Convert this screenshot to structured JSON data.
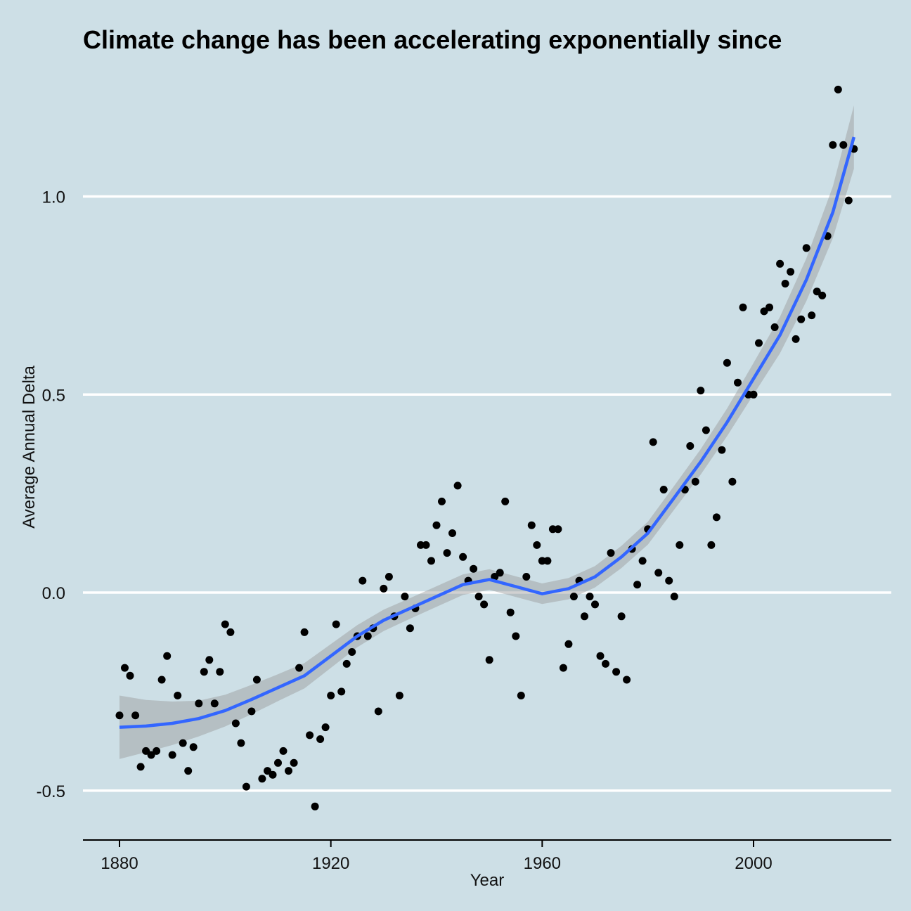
{
  "chart_data": {
    "type": "scatter",
    "title": "Climate change has been accelerating exponentially since",
    "xlabel": "Year",
    "ylabel": "Average Annual Delta",
    "xlim": [
      1873,
      2026
    ],
    "ylim": [
      -0.6,
      1.25
    ],
    "x_ticks": [
      1880,
      1920,
      1960,
      2000
    ],
    "x_tick_labels": [
      "1880",
      "1920",
      "1960",
      "2000"
    ],
    "y_ticks": [
      -0.5,
      0.0,
      0.5,
      1.0
    ],
    "y_tick_labels": [
      "-0.5",
      "0.0",
      "0.5",
      "1.0"
    ],
    "grid": "horizontal major lines only",
    "colors": {
      "background": "#cddfe6",
      "points": "#000000",
      "smooth_line": "#3366ff",
      "ribbon": "#999999",
      "grid": "#ffffff"
    },
    "series": [
      {
        "type": "scatter",
        "x": [
          1880,
          1881,
          1882,
          1883,
          1884,
          1885,
          1886,
          1887,
          1888,
          1889,
          1890,
          1891,
          1892,
          1893,
          1894,
          1895,
          1896,
          1897,
          1898,
          1899,
          1900,
          1901,
          1902,
          1903,
          1904,
          1905,
          1906,
          1907,
          1908,
          1909,
          1910,
          1911,
          1912,
          1913,
          1914,
          1915,
          1916,
          1917,
          1918,
          1919,
          1920,
          1921,
          1922,
          1923,
          1924,
          1925,
          1926,
          1927,
          1928,
          1929,
          1930,
          1931,
          1932,
          1933,
          1934,
          1935,
          1936,
          1937,
          1938,
          1939,
          1940,
          1941,
          1942,
          1943,
          1944,
          1945,
          1946,
          1947,
          1948,
          1949,
          1950,
          1951,
          1952,
          1953,
          1954,
          1955,
          1956,
          1957,
          1958,
          1959,
          1960,
          1961,
          1962,
          1963,
          1964,
          1965,
          1966,
          1967,
          1968,
          1969,
          1970,
          1971,
          1972,
          1973,
          1974,
          1975,
          1976,
          1977,
          1978,
          1979,
          1980,
          1981,
          1982,
          1983,
          1984,
          1985,
          1986,
          1987,
          1988,
          1989,
          1990,
          1991,
          1992,
          1993,
          1994,
          1995,
          1996,
          1997,
          1998,
          1999,
          2000,
          2001,
          2002,
          2003,
          2004,
          2005,
          2006,
          2007,
          2008,
          2009,
          2010,
          2011,
          2012,
          2013,
          2014,
          2015,
          2016,
          2017,
          2018,
          2019
        ],
        "y": [
          -0.31,
          -0.19,
          -0.21,
          -0.31,
          -0.44,
          -0.4,
          -0.41,
          -0.4,
          -0.22,
          -0.16,
          -0.41,
          -0.26,
          -0.38,
          -0.45,
          -0.39,
          -0.28,
          -0.2,
          -0.17,
          -0.28,
          -0.2,
          -0.08,
          -0.1,
          -0.33,
          -0.38,
          -0.49,
          -0.3,
          -0.22,
          -0.47,
          -0.45,
          -0.46,
          -0.43,
          -0.4,
          -0.45,
          -0.43,
          -0.19,
          -0.1,
          -0.36,
          -0.54,
          -0.37,
          -0.34,
          -0.26,
          -0.08,
          -0.25,
          -0.18,
          -0.15,
          -0.11,
          0.03,
          -0.11,
          -0.09,
          -0.3,
          0.01,
          0.04,
          -0.06,
          -0.26,
          -0.01,
          -0.09,
          -0.04,
          0.12,
          0.12,
          0.08,
          0.17,
          0.23,
          0.1,
          0.15,
          0.27,
          0.09,
          0.03,
          0.06,
          -0.01,
          -0.03,
          -0.17,
          0.04,
          0.05,
          0.23,
          -0.05,
          -0.11,
          -0.26,
          0.04,
          0.17,
          0.12,
          0.08,
          0.08,
          0.16,
          0.16,
          -0.19,
          -0.13,
          -0.01,
          0.03,
          -0.06,
          -0.01,
          -0.03,
          -0.16,
          -0.18,
          0.1,
          -0.2,
          -0.06,
          -0.22,
          0.11,
          0.02,
          0.08,
          0.16,
          0.38,
          0.05,
          0.26,
          0.03,
          -0.01,
          0.12,
          0.26,
          0.37,
          0.28,
          0.51,
          0.41,
          0.12,
          0.19,
          0.36,
          0.58,
          0.28,
          0.53,
          0.72,
          0.5,
          0.5,
          0.63,
          0.71,
          0.72,
          0.67,
          0.83,
          0.78,
          0.81,
          0.64,
          0.69,
          0.87,
          0.7,
          0.76,
          0.75,
          0.9,
          1.13,
          1.27,
          1.13,
          0.99,
          1.12
        ]
      },
      {
        "type": "smooth",
        "x": [
          1880,
          1885,
          1890,
          1895,
          1900,
          1905,
          1910,
          1915,
          1920,
          1925,
          1930,
          1935,
          1940,
          1945,
          1950,
          1955,
          1960,
          1965,
          1970,
          1975,
          1980,
          1985,
          1990,
          1995,
          2000,
          2005,
          2010,
          2015,
          2019
        ],
        "y": [
          -0.34,
          -0.337,
          -0.33,
          -0.318,
          -0.298,
          -0.27,
          -0.24,
          -0.21,
          -0.16,
          -0.11,
          -0.07,
          -0.04,
          -0.01,
          0.02,
          0.033,
          0.015,
          -0.003,
          0.01,
          0.04,
          0.09,
          0.15,
          0.24,
          0.33,
          0.43,
          0.54,
          0.65,
          0.79,
          0.96,
          1.15
        ],
        "ci_half_width": [
          0.08,
          0.066,
          0.055,
          0.045,
          0.04,
          0.037,
          0.034,
          0.032,
          0.03,
          0.028,
          0.027,
          0.026,
          0.026,
          0.026,
          0.026,
          0.026,
          0.026,
          0.027,
          0.027,
          0.028,
          0.029,
          0.03,
          0.032,
          0.035,
          0.04,
          0.046,
          0.054,
          0.065,
          0.08
        ]
      }
    ]
  }
}
